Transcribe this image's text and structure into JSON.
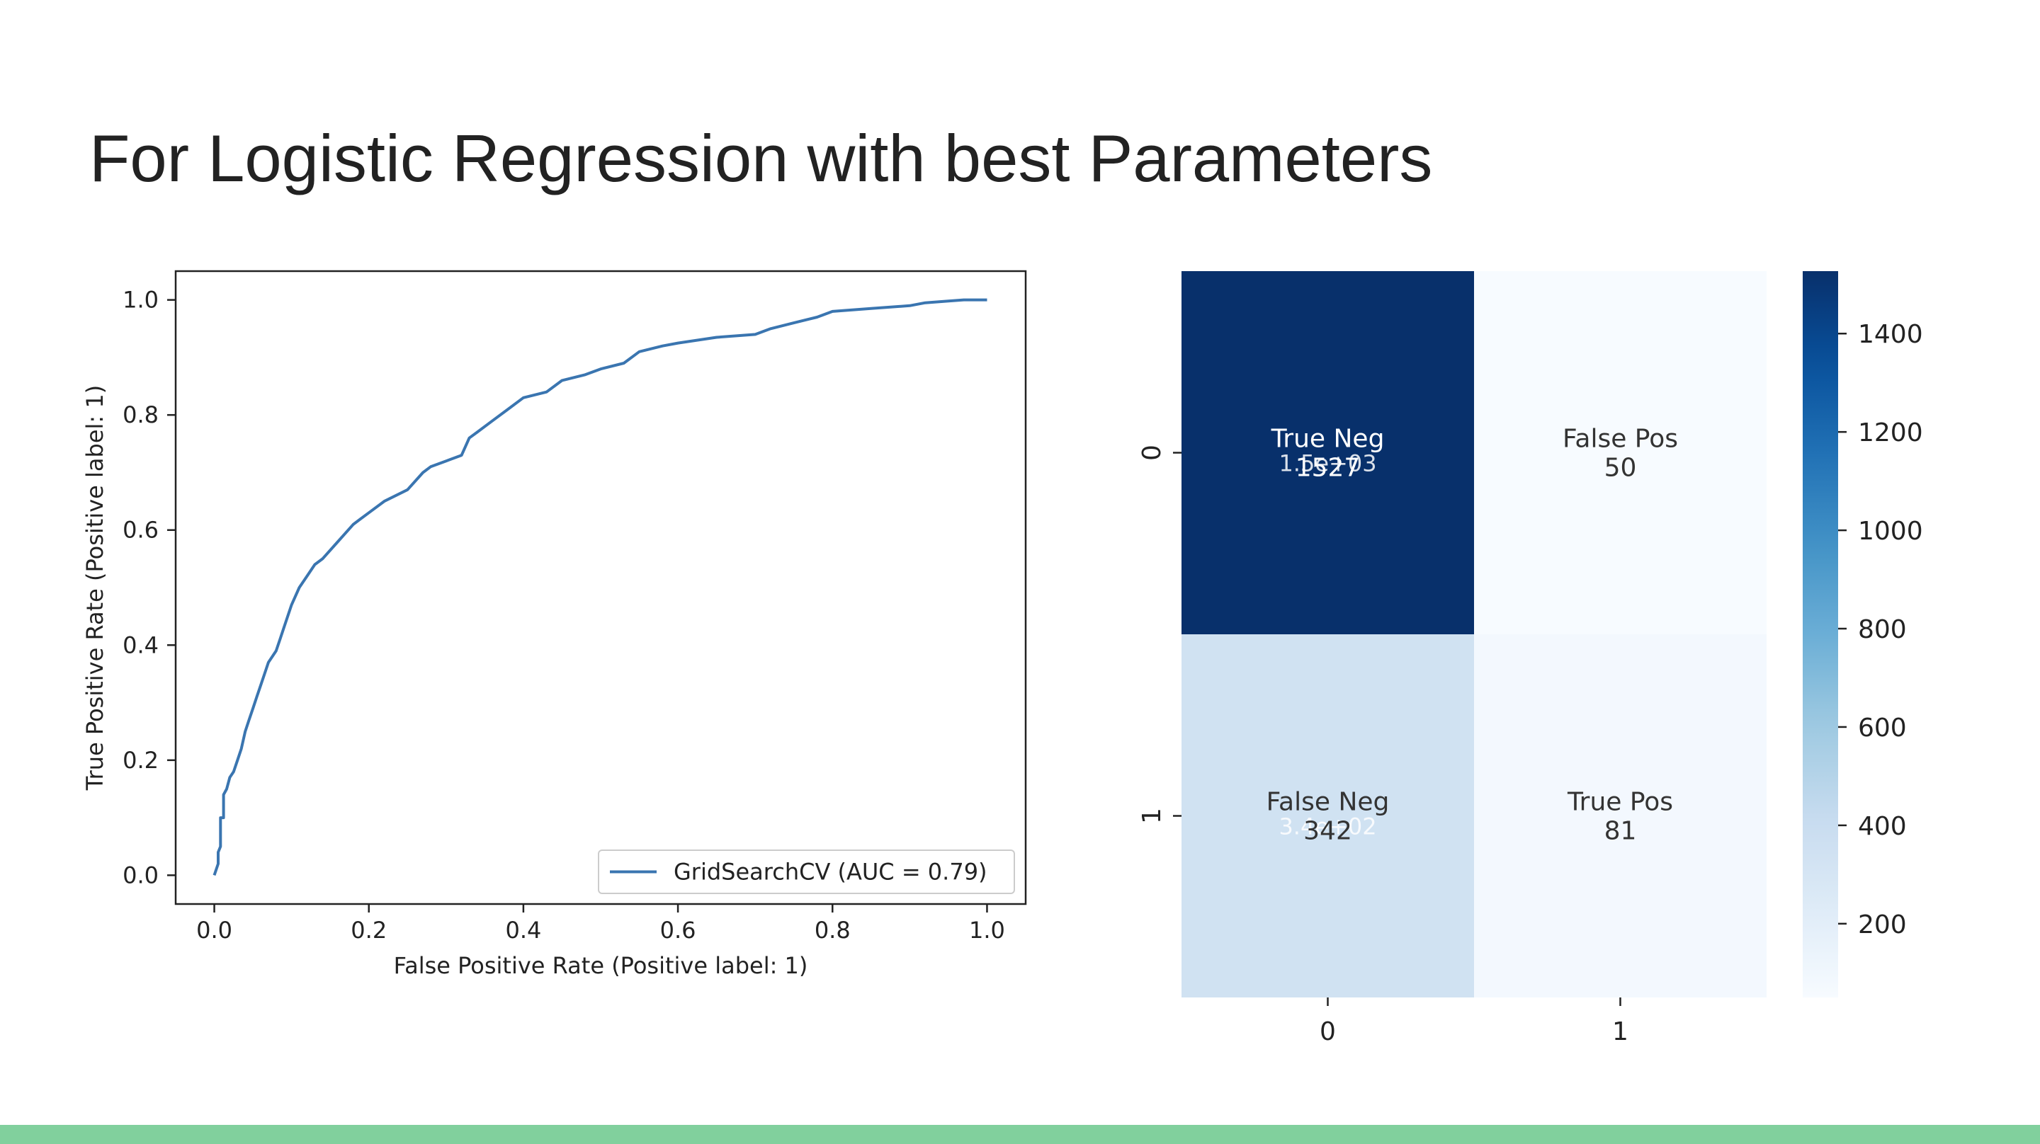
{
  "slide": {
    "title": "For Logistic Regression with best Parameters",
    "footer_color": "#81d09d"
  },
  "chart_data": [
    {
      "type": "line",
      "title": "",
      "xlabel": "False Positive Rate (Positive label: 1)",
      "ylabel": "True Positive Rate (Positive label: 1)",
      "xlim": [
        -0.05,
        1.05
      ],
      "ylim": [
        -0.05,
        1.05
      ],
      "xticks": [
        0.0,
        0.2,
        0.4,
        0.6,
        0.8,
        1.0
      ],
      "yticks": [
        0.0,
        0.2,
        0.4,
        0.6,
        0.8,
        1.0
      ],
      "tick_labels": [
        "0.0",
        "0.2",
        "0.4",
        "0.6",
        "0.8",
        "1.0"
      ],
      "grid": false,
      "legend_position": "bottom-right",
      "series": [
        {
          "name": "GridSearchCV (AUC = 0.79)",
          "color": "#3a75b0",
          "x": [
            0.0,
            0.005,
            0.005,
            0.008,
            0.008,
            0.012,
            0.012,
            0.016,
            0.02,
            0.025,
            0.03,
            0.035,
            0.04,
            0.045,
            0.05,
            0.055,
            0.06,
            0.065,
            0.07,
            0.075,
            0.08,
            0.085,
            0.09,
            0.1,
            0.11,
            0.12,
            0.13,
            0.14,
            0.16,
            0.18,
            0.2,
            0.22,
            0.25,
            0.27,
            0.28,
            0.3,
            0.32,
            0.33,
            0.34,
            0.36,
            0.38,
            0.4,
            0.43,
            0.45,
            0.48,
            0.5,
            0.53,
            0.55,
            0.58,
            0.6,
            0.65,
            0.7,
            0.72,
            0.75,
            0.78,
            0.8,
            0.85,
            0.9,
            0.92,
            0.95,
            0.97,
            1.0
          ],
          "y": [
            0.0,
            0.02,
            0.04,
            0.05,
            0.1,
            0.1,
            0.14,
            0.15,
            0.17,
            0.18,
            0.2,
            0.22,
            0.25,
            0.27,
            0.29,
            0.31,
            0.33,
            0.35,
            0.37,
            0.38,
            0.39,
            0.41,
            0.43,
            0.47,
            0.5,
            0.52,
            0.54,
            0.55,
            0.58,
            0.61,
            0.63,
            0.65,
            0.67,
            0.7,
            0.71,
            0.72,
            0.73,
            0.76,
            0.77,
            0.79,
            0.81,
            0.83,
            0.84,
            0.86,
            0.87,
            0.88,
            0.89,
            0.91,
            0.92,
            0.925,
            0.935,
            0.94,
            0.95,
            0.96,
            0.97,
            0.98,
            0.985,
            0.99,
            0.995,
            0.998,
            1.0,
            1.0
          ]
        }
      ]
    },
    {
      "type": "heatmap",
      "title": "",
      "xlabel": "",
      "ylabel": "",
      "row_labels": [
        "0",
        "1"
      ],
      "col_labels": [
        "0",
        "1"
      ],
      "values": [
        [
          1527,
          50
        ],
        [
          342,
          81
        ]
      ],
      "cell_labels": [
        [
          "True Neg",
          "False Pos"
        ],
        [
          "False Neg",
          "True Pos"
        ]
      ],
      "value_text": [
        [
          "1527",
          "50"
        ],
        [
          "342",
          "81"
        ]
      ],
      "ghost_text": [
        [
          "1.5e+03",
          ""
        ],
        [
          "3.4e+02",
          ""
        ]
      ],
      "colormap": "Blues",
      "colorbar": {
        "min": 50,
        "max": 1527,
        "ticks": [
          200,
          400,
          600,
          800,
          1000,
          1200,
          1400
        ],
        "tick_labels": [
          "200",
          "400",
          "600",
          "800",
          "1000",
          "1200",
          "1400"
        ]
      }
    }
  ]
}
